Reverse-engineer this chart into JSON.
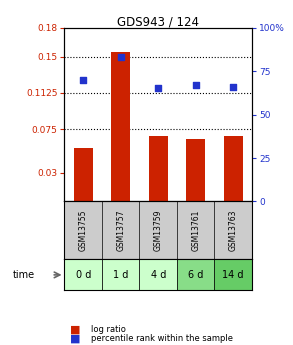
{
  "title": "GDS943 / 124",
  "samples": [
    "GSM13755",
    "GSM13757",
    "GSM13759",
    "GSM13761",
    "GSM13763"
  ],
  "time_labels": [
    "0 d",
    "1 d",
    "4 d",
    "6 d",
    "14 d"
  ],
  "log_ratio": [
    0.055,
    0.155,
    0.068,
    0.065,
    0.068
  ],
  "percentile_rank": [
    70,
    83,
    65,
    67,
    66
  ],
  "bar_color": "#cc2200",
  "dot_color": "#2233cc",
  "left_yticks": [
    0.03,
    0.075,
    0.1125,
    0.15,
    0.18
  ],
  "left_ylim": [
    0.0,
    0.18
  ],
  "right_yticks": [
    0,
    25,
    50,
    75,
    100
  ],
  "bg_color": "#ffffff",
  "plot_bg": "#ffffff",
  "sample_bg": "#cccccc",
  "time_bg_colors": [
    "#ccffcc",
    "#ccffcc",
    "#ccffcc",
    "#88dd88",
    "#66cc66"
  ],
  "legend_log_ratio": "log ratio",
  "legend_percentile": "percentile rank within the sample",
  "time_label": "time"
}
